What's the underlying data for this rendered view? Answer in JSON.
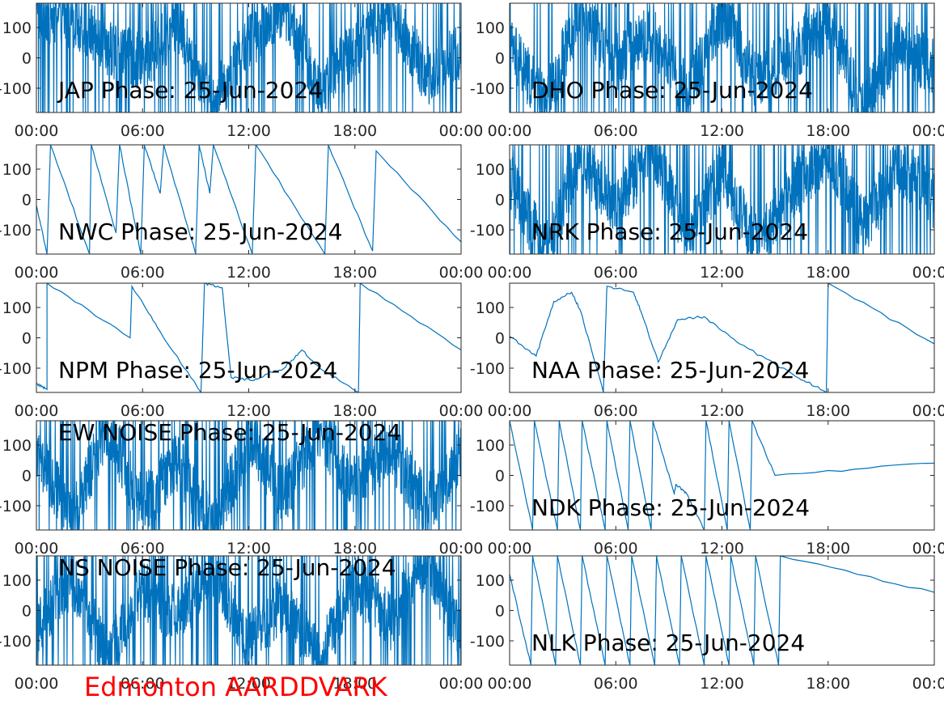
{
  "figure": {
    "caption": "Edmonton AARDDVARK",
    "caption_color": "#ff0000",
    "line_color": "#0072bd"
  },
  "chart_data": [
    {
      "type": "line",
      "title": "JAP Phase: 25-Jun-2024",
      "title_position": "bottom-left",
      "xlabel": "",
      "ylabel": "",
      "xlim": [
        "00:00",
        "00:00"
      ],
      "ylim": [
        -180,
        180
      ],
      "x_ticks": [
        "00:00",
        "06:00",
        "12:00",
        "18:00",
        "00:00"
      ],
      "y_ticks": [
        "100",
        "0",
        "-100"
      ],
      "x": [
        0,
        2,
        4,
        6,
        8,
        10,
        12,
        14,
        16,
        18,
        20,
        22,
        24
      ],
      "series": [
        {
          "values": [
            150,
            130,
            40,
            -20,
            110,
            -150,
            60,
            170,
            -100,
            30,
            160,
            -60,
            20
          ]
        }
      ],
      "pattern": "noise"
    },
    {
      "type": "line",
      "title": "DHO Phase: 25-Jun-2024",
      "title_position": "bottom-left",
      "xlabel": "",
      "ylabel": "",
      "xlim": [
        "00:00",
        "00:00"
      ],
      "ylim": [
        -180,
        180
      ],
      "x_ticks": [
        "00:00",
        "06:00",
        "12:00",
        "18:00",
        "00:00"
      ],
      "y_ticks": [
        "100",
        "0",
        "-100"
      ],
      "x": [
        0,
        2,
        4,
        6,
        8,
        10,
        12,
        14,
        16,
        18,
        20,
        22,
        24
      ],
      "series": [
        {
          "values": [
            40,
            -160,
            170,
            -20,
            90,
            -120,
            150,
            -80,
            10,
            130,
            -170,
            60,
            -40
          ]
        }
      ],
      "pattern": "noise"
    },
    {
      "type": "line",
      "title": "NWC Phase: 25-Jun-2024",
      "title_position": "bottom-left",
      "xlabel": "",
      "ylabel": "",
      "xlim": [
        "00:00",
        "00:00"
      ],
      "ylim": [
        -180,
        180
      ],
      "x_ticks": [
        "00:00",
        "06:00",
        "12:00",
        "18:00",
        "00:00"
      ],
      "y_ticks": [
        "100",
        "0",
        "-100"
      ],
      "x": [
        0,
        0.6,
        0.8,
        3.0,
        3.1,
        4.5,
        4.7,
        5.9,
        6.1,
        7.0,
        7.2,
        9.0,
        9.2,
        9.8,
        10.0,
        12.2,
        12.4,
        16.3,
        16.5,
        19.0,
        19.2,
        24.0
      ],
      "series": [
        {
          "values": [
            -20,
            -180,
            180,
            -180,
            180,
            -110,
            180,
            -180,
            180,
            20,
            180,
            -180,
            180,
            20,
            180,
            -180,
            180,
            -180,
            180,
            -170,
            160,
            -140
          ]
        }
      ],
      "pattern": "sawtooth"
    },
    {
      "type": "line",
      "title": "NRK Phase: 25-Jun-2024",
      "title_position": "bottom-left",
      "xlabel": "",
      "ylabel": "",
      "xlim": [
        "00:00",
        "00:00"
      ],
      "ylim": [
        -180,
        180
      ],
      "x_ticks": [
        "00:00",
        "06:00",
        "12:00",
        "18:00",
        "00:00"
      ],
      "y_ticks": [
        "100",
        "0",
        "-100"
      ],
      "x": [
        0,
        2,
        4,
        6,
        8,
        10,
        12,
        14,
        16,
        18,
        20,
        22,
        24
      ],
      "series": [
        {
          "values": [
            60,
            -170,
            140,
            -40,
            170,
            -120,
            90,
            -150,
            30,
            160,
            -90,
            120,
            -10
          ]
        }
      ],
      "pattern": "noise"
    },
    {
      "type": "line",
      "title": "NPM Phase: 25-Jun-2024",
      "title_position": "bottom-left",
      "xlabel": "",
      "ylabel": "",
      "xlim": [
        "00:00",
        "00:00"
      ],
      "ylim": [
        -180,
        180
      ],
      "x_ticks": [
        "00:00",
        "06:00",
        "12:00",
        "18:00",
        "00:00"
      ],
      "y_ticks": [
        "100",
        "0",
        "-100"
      ],
      "x": [
        0,
        0.6,
        0.6,
        5.3,
        5.4,
        7.0,
        9.3,
        9.5,
        10.5,
        11.0,
        12.3,
        13.0,
        14.0,
        15.0,
        16.0,
        18.2,
        18.3,
        24.0
      ],
      "series": [
        {
          "values": [
            -150,
            -170,
            180,
            0,
            170,
            20,
            -180,
            180,
            165,
            -130,
            -140,
            -120,
            -100,
            -40,
            -100,
            -180,
            180,
            -40
          ]
        }
      ],
      "pattern": "sawtooth"
    },
    {
      "type": "line",
      "title": "NAA Phase: 25-Jun-2024",
      "title_position": "bottom-left",
      "xlabel": "",
      "ylabel": "",
      "xlim": [
        "00:00",
        "00:00"
      ],
      "ylim": [
        -180,
        180
      ],
      "x_ticks": [
        "00:00",
        "06:00",
        "12:00",
        "18:00",
        "00:00"
      ],
      "y_ticks": [
        "100",
        "0",
        "-100"
      ],
      "x": [
        0,
        1.5,
        2.5,
        3.5,
        4.0,
        5.3,
        5.5,
        7.0,
        7.4,
        8.4,
        9.5,
        11.0,
        13.0,
        16.0,
        17.9,
        18.0,
        24.0
      ],
      "series": [
        {
          "values": [
            5,
            -60,
            120,
            150,
            90,
            -180,
            170,
            150,
            90,
            -80,
            60,
            70,
            -20,
            -120,
            -180,
            180,
            -20
          ]
        }
      ],
      "pattern": "sawtooth"
    },
    {
      "type": "line",
      "title": "EW NOISE Phase: 25-Jun-2024",
      "title_position": "top-left",
      "xlabel": "",
      "ylabel": "",
      "xlim": [
        "00:00",
        "00:00"
      ],
      "ylim": [
        -180,
        180
      ],
      "x_ticks": [
        "00:00",
        "06:00",
        "12:00",
        "18:00",
        "00:00"
      ],
      "y_ticks": [
        "100",
        "0",
        "-100"
      ],
      "x": [
        0,
        2,
        4,
        6,
        8,
        10,
        12,
        14,
        16,
        18,
        20,
        22,
        24
      ],
      "series": [
        {
          "values": [
            80,
            -140,
            160,
            -100,
            40,
            -170,
            120,
            -60,
            150,
            -30,
            90,
            -100,
            60
          ]
        }
      ],
      "pattern": "noise"
    },
    {
      "type": "line",
      "title": "NDK Phase: 25-Jun-2024",
      "title_position": "bottom-left",
      "xlabel": "",
      "ylabel": "",
      "xlim": [
        "00:00",
        "00:00"
      ],
      "ylim": [
        -180,
        180
      ],
      "x_ticks": [
        "00:00",
        "06:00",
        "12:00",
        "18:00",
        "00:00"
      ],
      "y_ticks": [
        "100",
        "0",
        "-100"
      ],
      "x": [
        0,
        1.3,
        1.4,
        2.7,
        2.8,
        4.0,
        4.1,
        5.4,
        5.5,
        6.7,
        6.8,
        8.0,
        8.1,
        9.3,
        9.4,
        10.0,
        11.0,
        11.1,
        12.3,
        12.4,
        13.6,
        13.7,
        15.0,
        24.0
      ],
      "series": [
        {
          "values": [
            180,
            -180,
            180,
            -180,
            180,
            -180,
            180,
            -180,
            180,
            -180,
            180,
            -180,
            180,
            -60,
            -30,
            -60,
            -180,
            180,
            -180,
            180,
            -180,
            180,
            0,
            40
          ]
        }
      ],
      "pattern": "sawtooth"
    },
    {
      "type": "line",
      "title": "NS NOISE Phase: 25-Jun-2024",
      "title_position": "top-left",
      "xlabel": "",
      "ylabel": "",
      "xlim": [
        "00:00",
        "00:00"
      ],
      "ylim": [
        -180,
        180
      ],
      "x_ticks": [
        "00:00",
        "06:00",
        "12:00",
        "18:00",
        "00:00"
      ],
      "y_ticks": [
        "100",
        "0",
        "-100"
      ],
      "x": [
        0,
        2,
        4,
        6,
        8,
        10,
        12,
        14,
        16,
        18,
        20,
        22,
        24
      ],
      "series": [
        {
          "values": [
            -60,
            110,
            -150,
            70,
            -20,
            140,
            -110,
            30,
            -170,
            100,
            -40,
            160,
            -80
          ]
        }
      ],
      "pattern": "noise"
    },
    {
      "type": "line",
      "title": "NLK Phase: 25-Jun-2024",
      "title_position": "bottom-left",
      "xlabel": "",
      "ylabel": "",
      "xlim": [
        "00:00",
        "00:00"
      ],
      "ylim": [
        -180,
        180
      ],
      "x_ticks": [
        "00:00",
        "06:00",
        "12:00",
        "18:00",
        "00:00"
      ],
      "y_ticks": [
        "100",
        "0",
        "-100"
      ],
      "x": [
        0,
        1.2,
        1.3,
        2.6,
        2.7,
        4.0,
        4.1,
        5.4,
        5.5,
        6.8,
        6.9,
        8.2,
        8.3,
        9.6,
        9.7,
        11.0,
        11.1,
        12.4,
        12.5,
        13.8,
        13.9,
        15.2,
        15.3,
        24.0
      ],
      "series": [
        {
          "values": [
            120,
            -180,
            180,
            -180,
            180,
            -180,
            180,
            -180,
            180,
            -180,
            180,
            -180,
            180,
            -180,
            180,
            -180,
            180,
            -180,
            180,
            -180,
            180,
            -180,
            180,
            60
          ]
        }
      ],
      "pattern": "sawtooth"
    }
  ]
}
